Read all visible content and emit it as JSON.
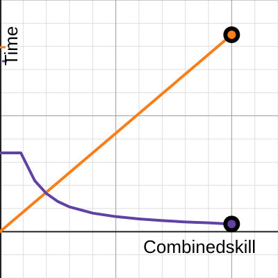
{
  "chart_data": {
    "type": "line",
    "title": "",
    "xlabel": "Combinedskill",
    "ylabel": "Time",
    "xlim": [
      0,
      12
    ],
    "ylim": [
      -2,
      10
    ],
    "grid": true,
    "legend": "",
    "series": [
      {
        "name": "",
        "color": "#fa7e19",
        "x": [
          0,
          10
        ],
        "y": [
          0,
          8.5
        ],
        "endpoint": [
          10,
          8.5
        ]
      },
      {
        "name": "",
        "color": "#6042a6",
        "x": [
          0,
          0.9,
          1.2,
          1.5,
          2.0,
          2.5,
          3.0,
          4.0,
          5.0,
          6.0,
          7.0,
          8.0,
          9.0,
          10.0
        ],
        "y": [
          3.4,
          3.4,
          2.8,
          2.2,
          1.65,
          1.3,
          1.07,
          0.8,
          0.65,
          0.55,
          0.48,
          0.42,
          0.38,
          0.33
        ],
        "endpoint": [
          10,
          0.33
        ]
      }
    ]
  }
}
